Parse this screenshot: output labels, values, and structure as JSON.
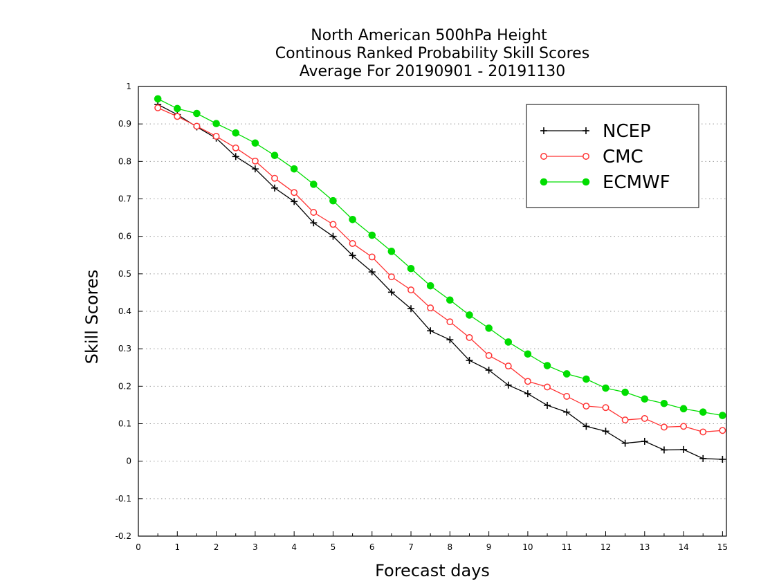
{
  "chart_data": {
    "type": "line",
    "title": [
      "North American 500hPa Height",
      "Continous Ranked Probability Skill Scores",
      "Average For 20190901 - 20191130"
    ],
    "xlabel": "Forecast days",
    "ylabel": "Skill Scores",
    "xlim": [
      0,
      15.1
    ],
    "ylim": [
      -0.2,
      1
    ],
    "xticks": [
      0,
      1,
      2,
      3,
      4,
      5,
      6,
      7,
      8,
      9,
      10,
      11,
      12,
      13,
      14,
      15
    ],
    "yticks": [
      -0.2,
      -0.1,
      0,
      0.1,
      0.2,
      0.3,
      0.4,
      0.5,
      0.6,
      0.7,
      0.8,
      0.9,
      1
    ],
    "ytick_labels": [
      "-0.2",
      "-0.1",
      "0",
      "0.1",
      "0.2",
      "0.3",
      "0.4",
      "0.5",
      "0.6",
      "0.7",
      "0.8",
      "0.9",
      "1"
    ],
    "grid": "horizontal dotted",
    "legend_position": "top-right",
    "x": [
      0.5,
      1.0,
      1.5,
      2.0,
      2.5,
      3.0,
      3.5,
      4.0,
      4.5,
      5.0,
      5.5,
      6.0,
      6.5,
      7.0,
      7.5,
      8.0,
      8.5,
      9.0,
      9.5,
      10.0,
      10.5,
      11.0,
      11.5,
      12.0,
      12.5,
      13.0,
      13.5,
      14.0,
      14.5,
      15.0
    ],
    "series": [
      {
        "name": "NCEP",
        "color": "#000000",
        "marker": "plus",
        "values": [
          0.952,
          0.925,
          0.892,
          0.862,
          0.813,
          0.78,
          0.729,
          0.693,
          0.636,
          0.6,
          0.549,
          0.505,
          0.451,
          0.407,
          0.348,
          0.324,
          0.269,
          0.243,
          0.203,
          0.18,
          0.149,
          0.131,
          0.093,
          0.08,
          0.048,
          0.053,
          0.03,
          0.031,
          0.007,
          0.005
        ]
      },
      {
        "name": "CMC",
        "color": "#ff3333",
        "marker": "open-circle",
        "values": [
          0.943,
          0.92,
          0.894,
          0.867,
          0.836,
          0.801,
          0.755,
          0.717,
          0.664,
          0.632,
          0.581,
          0.545,
          0.492,
          0.457,
          0.409,
          0.372,
          0.33,
          0.282,
          0.254,
          0.213,
          0.198,
          0.173,
          0.147,
          0.143,
          0.11,
          0.114,
          0.091,
          0.093,
          0.078,
          0.082
        ]
      },
      {
        "name": "ECMWF",
        "color": "#00dd00",
        "marker": "filled-circle",
        "values": [
          0.967,
          0.941,
          0.928,
          0.901,
          0.876,
          0.849,
          0.816,
          0.78,
          0.739,
          0.695,
          0.645,
          0.603,
          0.56,
          0.514,
          0.468,
          0.43,
          0.39,
          0.355,
          0.318,
          0.286,
          0.255,
          0.233,
          0.219,
          0.195,
          0.184,
          0.166,
          0.154,
          0.14,
          0.131,
          0.122
        ]
      }
    ]
  }
}
